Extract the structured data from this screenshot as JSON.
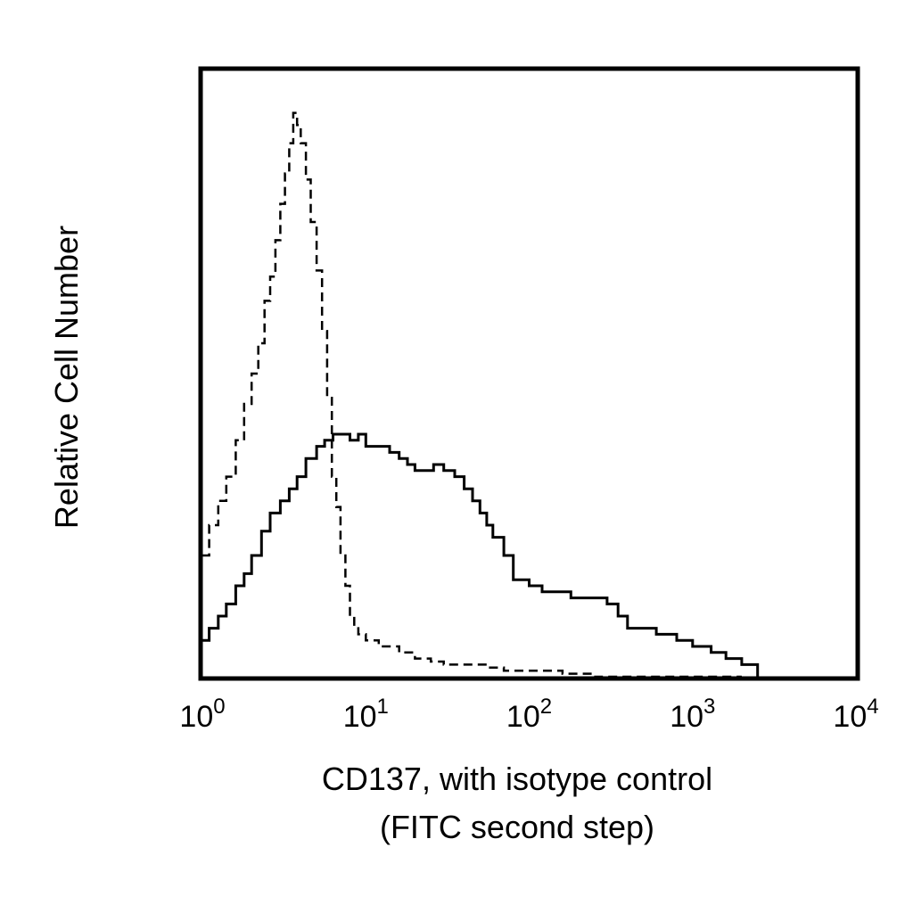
{
  "chart_data": {
    "type": "line",
    "subtype": "flow-cytometry-histogram",
    "ylabel": "Relative Cell Number",
    "xlabel_lines": [
      "CD137, with isotype control",
      "(FITC second step)"
    ],
    "xscale": "log",
    "xlim": [
      1,
      10000
    ],
    "ylim": [
      0,
      100
    ],
    "grid": false,
    "legend": "none",
    "y_ticks_shown": false,
    "x_ticks": [
      {
        "base": "10",
        "exp": "0",
        "value": 1
      },
      {
        "base": "10",
        "exp": "1",
        "value": 10
      },
      {
        "base": "10",
        "exp": "2",
        "value": 100
      },
      {
        "base": "10",
        "exp": "3",
        "value": 1000
      },
      {
        "base": "10",
        "exp": "4",
        "value": 10000
      }
    ],
    "series": [
      {
        "style": "dashed",
        "color": "#000000",
        "x": [
          1.0,
          1.1,
          1.25,
          1.4,
          1.6,
          1.8,
          2.0,
          2.2,
          2.4,
          2.6,
          2.8,
          3.0,
          3.2,
          3.4,
          3.6,
          3.8,
          4.0,
          4.3,
          4.6,
          5.0,
          5.4,
          5.8,
          6.2,
          6.6,
          7.0,
          7.5,
          8.0,
          8.5,
          9.0,
          10.0,
          11.0,
          12.0,
          14.0,
          16.0,
          20.0,
          25.0,
          30.0,
          40.0,
          55.0,
          70.0,
          90.0,
          120.0,
          160.0,
          250.0,
          500.0,
          1000.0,
          2000.0
        ],
        "y": [
          20,
          25,
          29,
          33,
          39,
          45,
          50,
          55,
          62,
          66,
          72,
          78,
          83,
          88,
          93,
          91,
          88,
          82,
          75,
          67,
          57,
          46,
          33,
          28,
          20,
          15,
          10,
          8,
          7,
          6,
          6,
          5,
          5,
          4,
          3,
          2.5,
          2,
          2,
          1.5,
          1,
          1,
          1,
          0.5,
          0,
          0,
          0,
          0
        ]
      },
      {
        "style": "solid",
        "color": "#000000",
        "x": [
          1.0,
          1.1,
          1.25,
          1.4,
          1.6,
          1.8,
          2.0,
          2.3,
          2.6,
          3.0,
          3.4,
          3.8,
          4.3,
          5.0,
          5.6,
          6.3,
          7.0,
          8.0,
          9.0,
          10.0,
          12.0,
          14.0,
          16.0,
          18.0,
          20.0,
          23.0,
          26.0,
          30.0,
          35.0,
          40.0,
          45.0,
          50.0,
          55.0,
          60.0,
          70.0,
          80.0,
          100.0,
          120.0,
          150.0,
          180.0,
          220.0,
          260.0,
          300.0,
          350.0,
          400.0,
          500.0,
          600.0,
          800.0,
          1000.0,
          1300.0,
          1600.0,
          2000.0,
          2500.0
        ],
        "y": [
          6,
          8,
          10,
          12,
          15,
          17,
          20,
          24,
          27,
          29,
          31,
          33,
          36,
          38,
          39,
          40,
          40,
          39,
          40,
          38,
          38,
          37,
          36,
          35,
          34,
          34,
          35,
          34,
          33,
          31,
          29,
          27,
          25,
          23,
          20,
          16,
          15,
          14,
          14,
          13,
          13,
          13,
          12,
          10,
          8,
          8,
          7,
          6,
          5,
          4,
          3,
          2,
          0
        ]
      }
    ]
  }
}
